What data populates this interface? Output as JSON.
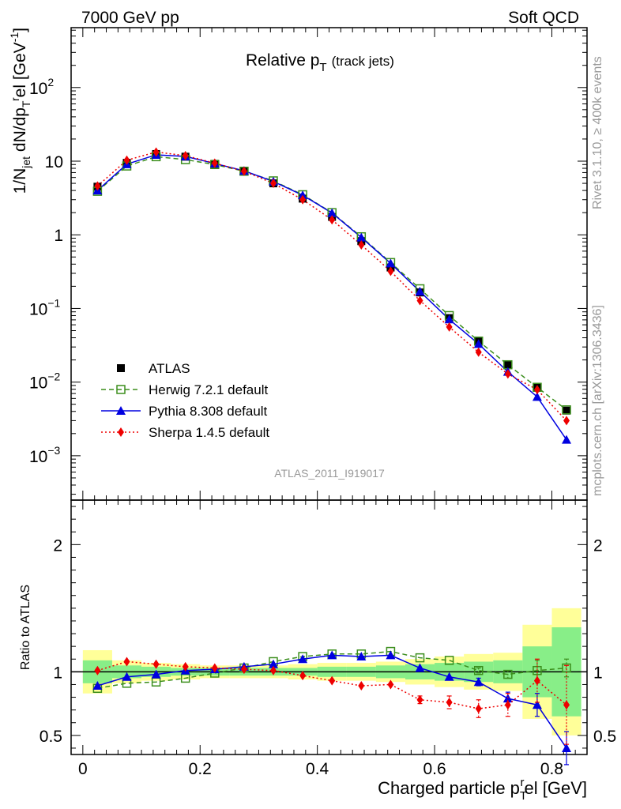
{
  "header": {
    "energy": "7000 GeV pp",
    "process": "Soft QCD",
    "rivet": "Rivet 3.1.10, ≥ 400k events",
    "site": "mcplots.cern.ch [arXiv:1306.3436]",
    "analysis_id": "ATLAS_2011_I919017"
  },
  "chart_data": {
    "type": "line",
    "title_main": "Relative p",
    "title_sub": "T",
    "title_extra": "(track jets)",
    "xlabel": "Charged particle p",
    "xlabel_sub": "T",
    "xlabel_sup": "r",
    "xlabel_tail": "el [GeV]",
    "ylabel": "1/N_jet dN/dp_T^rel [GeV^-1]",
    "ratio_ylabel": "Ratio to ATLAS",
    "xlim": [
      -0.02,
      0.86
    ],
    "ylim": [
      0.00025,
      650
    ],
    "ratio_ylim": [
      0.35,
      2.35
    ],
    "x_ticks": [
      0,
      0.2,
      0.4,
      0.6,
      0.8
    ],
    "x_tick_labels": [
      "0",
      "0.2",
      "0.4",
      "0.6",
      "0.8"
    ],
    "y_ticks": [
      0.001,
      0.01,
      0.1,
      1,
      10,
      100
    ],
    "y_tick_labels": [
      {
        "base": "10",
        "exp": "−3"
      },
      {
        "base": "10",
        "exp": "−2"
      },
      {
        "base": "10",
        "exp": "−1"
      },
      {
        "base": "1",
        "exp": ""
      },
      {
        "base": "10",
        "exp": ""
      },
      {
        "base": "10",
        "exp": "2"
      }
    ],
    "ratio_ticks": [
      0.5,
      1,
      2
    ],
    "ratio_tick_labels": [
      "0.5",
      "1",
      "2"
    ],
    "x": [
      0.025,
      0.075,
      0.125,
      0.175,
      0.225,
      0.275,
      0.325,
      0.375,
      0.425,
      0.475,
      0.525,
      0.575,
      0.625,
      0.675,
      0.725,
      0.775,
      0.825
    ],
    "bin_edges": [
      0,
      0.05,
      0.1,
      0.15,
      0.2,
      0.25,
      0.3,
      0.35,
      0.4,
      0.45,
      0.5,
      0.55,
      0.6,
      0.65,
      0.7,
      0.75,
      0.8,
      0.85
    ],
    "series": [
      {
        "name": "ATLAS",
        "color": "#000000",
        "marker": "square",
        "values": [
          4.5,
          9.5,
          12.5,
          11.5,
          9.2,
          7.2,
          5.0,
          3.1,
          1.75,
          0.82,
          0.36,
          0.165,
          0.074,
          0.036,
          0.0175,
          0.0085,
          0.0041
        ]
      },
      {
        "name": "Herwig 7.2.1 default",
        "color": "#3b8e1c",
        "marker": "open-square",
        "dash": "6,4",
        "values": [
          3.9,
          8.6,
          11.5,
          10.5,
          9.0,
          7.3,
          5.4,
          3.5,
          2.0,
          0.94,
          0.42,
          0.185,
          0.08,
          0.036,
          0.0172,
          0.0085,
          0.0042
        ]
      },
      {
        "name": "Pythia 8.308 default",
        "color": "#0000e0",
        "marker": "triangle",
        "values": [
          4.0,
          9.1,
          12.2,
          11.6,
          9.3,
          7.4,
          5.3,
          3.45,
          1.98,
          0.92,
          0.41,
          0.17,
          0.071,
          0.033,
          0.0138,
          0.0063,
          0.00165
        ]
      },
      {
        "name": "Sherpa 1.4.5 default",
        "color": "#ee0000",
        "marker": "diamond",
        "dash": "2,3",
        "values": [
          4.6,
          10.3,
          13.3,
          11.9,
          9.4,
          7.3,
          5.0,
          3.0,
          1.6,
          0.73,
          0.32,
          0.128,
          0.056,
          0.0255,
          0.0129,
          0.0079,
          0.003
        ]
      }
    ],
    "ratio": {
      "band_yellow": [
        0.17,
        0.09,
        0.07,
        0.06,
        0.05,
        0.05,
        0.05,
        0.06,
        0.07,
        0.07,
        0.08,
        0.1,
        0.12,
        0.14,
        0.15,
        0.37,
        0.5
      ],
      "band_green": [
        0.09,
        0.05,
        0.04,
        0.03,
        0.03,
        0.03,
        0.03,
        0.03,
        0.04,
        0.04,
        0.05,
        0.06,
        0.07,
        0.08,
        0.09,
        0.2,
        0.35
      ],
      "series": [
        {
          "name": "Herwig 7.2.1 default",
          "values": [
            0.87,
            0.91,
            0.92,
            0.95,
            0.99,
            1.03,
            1.08,
            1.12,
            1.14,
            1.14,
            1.16,
            1.11,
            1.09,
            1.01,
            0.98,
            1.01,
            1.03
          ],
          "errors": [
            0,
            0,
            0,
            0,
            0,
            0,
            0,
            0,
            0,
            0,
            0,
            0,
            0,
            0.02,
            0.03,
            0.08,
            0.07
          ]
        },
        {
          "name": "Pythia 8.308 default",
          "values": [
            0.89,
            0.96,
            0.98,
            1.01,
            1.02,
            1.04,
            1.06,
            1.1,
            1.13,
            1.12,
            1.13,
            1.03,
            0.96,
            0.92,
            0.79,
            0.74,
            0.4
          ],
          "errors": [
            0,
            0,
            0,
            0,
            0,
            0,
            0,
            0,
            0,
            0,
            0,
            0,
            0,
            0.03,
            0.05,
            0.09,
            0.13
          ]
        },
        {
          "name": "Sherpa 1.4.5 default",
          "values": [
            1.01,
            1.08,
            1.06,
            1.04,
            1.03,
            1.02,
            1.01,
            0.97,
            0.93,
            0.89,
            0.9,
            0.78,
            0.76,
            0.71,
            0.74,
            0.93,
            0.74
          ],
          "errors": [
            0,
            0,
            0,
            0,
            0,
            0,
            0,
            0,
            0,
            0,
            0,
            0.03,
            0.05,
            0.07,
            0.09,
            0.17,
            0.31
          ]
        }
      ]
    }
  }
}
